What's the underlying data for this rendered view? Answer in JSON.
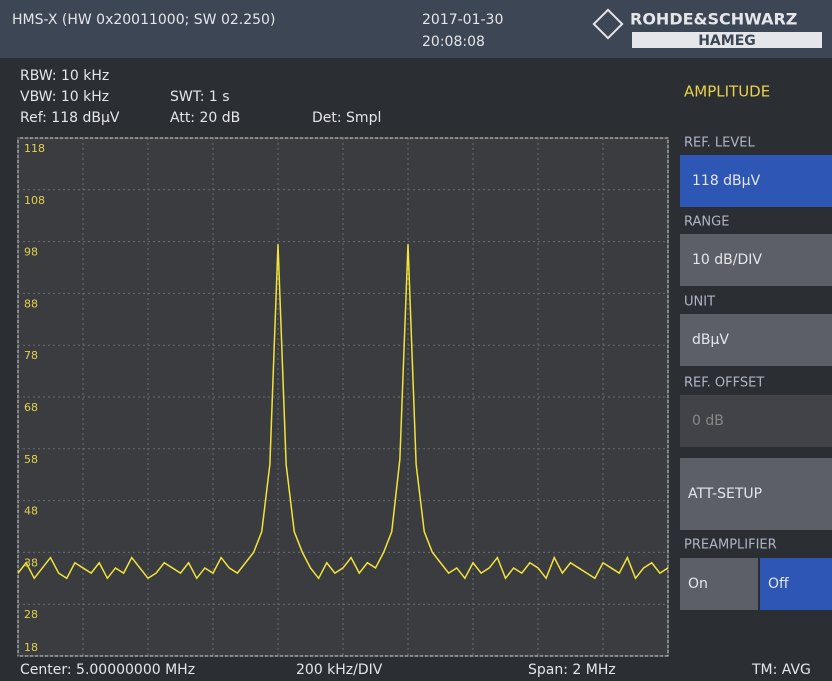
{
  "header": {
    "device": "HMS-X (HW 0x20011000; SW 02.250)",
    "date": "2017-01-30",
    "time": "20:08:08",
    "brand": "ROHDE&SCHWARZ",
    "sub_brand": "HAMEG"
  },
  "settings": {
    "rbw": "RBW: 10 kHz",
    "vbw": "VBW: 10 kHz",
    "swt": "SWT: 1 s",
    "ref": "Ref: 118 dBµV",
    "att": "Att: 20 dB",
    "det": "Det: Smpl"
  },
  "chart_data": {
    "type": "line",
    "color": "#f2e43a",
    "grid": true,
    "x": [
      4.0,
      4.025,
      4.05,
      4.075,
      4.1,
      4.125,
      4.15,
      4.175,
      4.2,
      4.225,
      4.25,
      4.275,
      4.3,
      4.325,
      4.35,
      4.375,
      4.4,
      4.425,
      4.45,
      4.475,
      4.5,
      4.525,
      4.55,
      4.575,
      4.6,
      4.625,
      4.65,
      4.675,
      4.7,
      4.725,
      4.75,
      4.775,
      4.8,
      4.825,
      4.85,
      4.875,
      4.9,
      4.925,
      4.95,
      4.975,
      5.0,
      5.025,
      5.05,
      5.075,
      5.1,
      5.125,
      5.15,
      5.175,
      5.2,
      5.225,
      5.25,
      5.275,
      5.3,
      5.325,
      5.35,
      5.375,
      5.4,
      5.425,
      5.45,
      5.475,
      5.5,
      5.525,
      5.55,
      5.575,
      5.6,
      5.625,
      5.65,
      5.675,
      5.7,
      5.725,
      5.75,
      5.775,
      5.8,
      5.825,
      5.85,
      5.875,
      5.9,
      5.925,
      5.95,
      5.975,
      6.0
    ],
    "values": [
      34,
      36,
      33,
      35,
      37,
      34,
      33,
      36,
      35,
      34,
      36,
      33,
      35,
      34,
      37,
      35,
      33,
      34,
      36,
      35,
      34,
      36,
      33,
      35,
      34,
      37,
      35,
      34,
      36,
      38,
      42,
      55,
      97.5,
      55,
      42,
      38,
      35,
      33,
      36,
      34,
      35,
      37,
      34,
      36,
      35,
      38,
      42,
      56,
      97.5,
      55,
      42,
      38,
      36,
      34,
      35,
      33,
      36,
      34,
      35,
      37,
      33,
      35,
      34,
      36,
      35,
      33,
      37,
      34,
      36,
      35,
      34,
      33,
      36,
      35,
      34,
      37,
      33,
      35,
      36,
      34,
      35
    ],
    "xlim": [
      4,
      6
    ],
    "xticks": [
      4.0,
      4.2,
      4.4,
      4.6,
      4.8,
      5.0,
      5.2,
      5.4,
      5.6,
      5.8,
      6.0
    ],
    "ylim": [
      18,
      118
    ],
    "yticks": [
      118,
      108,
      98,
      88,
      78,
      68,
      58,
      48,
      38,
      28,
      18
    ]
  },
  "footer": {
    "center": "Center: 5.00000000 MHz",
    "div": "200 kHz/DIV",
    "span": "Span: 2 MHz",
    "mode": "TM: AVG"
  },
  "menu": {
    "title": "AMPLITUDE",
    "ref_level_label": "REF. LEVEL",
    "ref_level_value": "118 dBµV",
    "range_label": "RANGE",
    "range_value": "10 dB/DIV",
    "unit_label": "UNIT",
    "unit_value": "dBµV",
    "ref_offset_label": "REF. OFFSET",
    "ref_offset_value": "0 dB",
    "att_setup": "ATT-SETUP",
    "preamp_label": "PREAMPLIFIER",
    "preamp_on": "On",
    "preamp_off": "Off"
  }
}
